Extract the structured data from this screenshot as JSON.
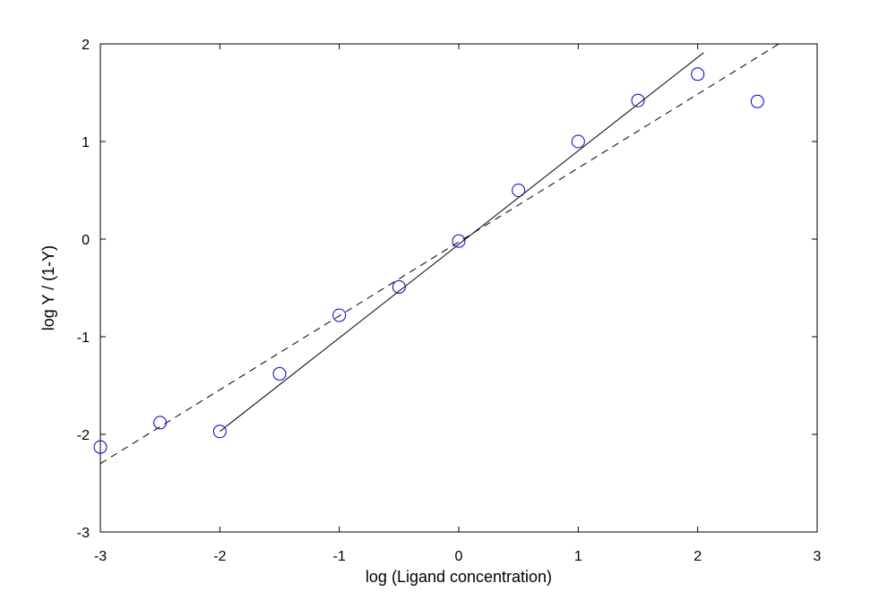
{
  "chart_data": {
    "type": "scatter",
    "title": "",
    "xlabel": "log (Ligand concentration)",
    "ylabel": "log Y / (1-Y)",
    "xlim": [
      -3,
      3
    ],
    "ylim": [
      -3,
      2
    ],
    "xticks": [
      -3,
      -2,
      -1,
      0,
      1,
      2,
      3
    ],
    "yticks": [
      -3,
      -2,
      -1,
      0,
      1,
      2
    ],
    "grid": false,
    "legend": "none",
    "series": [
      {
        "type": "scatter",
        "marker": "open-circle",
        "color": "#0000cc",
        "x": [
          -3,
          -2.5,
          -2,
          -1.5,
          -1,
          -0.5,
          0,
          0.5,
          1,
          1.5,
          2,
          2.5
        ],
        "y": [
          -2.13,
          -1.88,
          -1.97,
          -1.38,
          -0.78,
          -0.49,
          -0.02,
          0.5,
          1.0,
          1.42,
          1.69,
          1.41
        ]
      },
      {
        "type": "line",
        "style": "solid",
        "color": "#000000",
        "x": [
          -2,
          2.05
        ],
        "y": [
          -1.97,
          1.91
        ]
      },
      {
        "type": "line",
        "style": "dashed",
        "color": "#000000",
        "x": [
          -3,
          2.68
        ],
        "y": [
          -2.3,
          2.0
        ]
      }
    ]
  }
}
